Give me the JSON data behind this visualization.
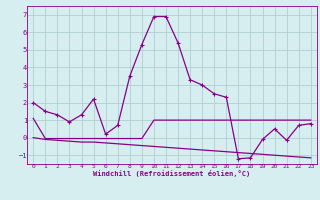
{
  "xlabel": "Windchill (Refroidissement éolien,°C)",
  "background_color": "#d6eef0",
  "grid_color": "#b0d0d4",
  "line_color": "#880088",
  "x_values": [
    0,
    1,
    2,
    3,
    4,
    5,
    6,
    7,
    8,
    9,
    10,
    11,
    12,
    13,
    14,
    15,
    16,
    17,
    18,
    19,
    20,
    21,
    22,
    23
  ],
  "y_main": [
    2.0,
    1.5,
    1.3,
    0.9,
    1.3,
    2.2,
    0.2,
    0.7,
    3.5,
    5.3,
    6.9,
    6.9,
    5.4,
    3.3,
    3.0,
    2.5,
    2.3,
    -1.2,
    -1.15,
    -0.1,
    0.5,
    -0.15,
    0.7,
    0.8
  ],
  "y_line1": [
    1.1,
    -0.05,
    -0.05,
    -0.05,
    -0.05,
    -0.05,
    -0.05,
    -0.05,
    -0.05,
    -0.05,
    1.0,
    1.0,
    1.0,
    1.0,
    1.0,
    1.0,
    1.0,
    1.0,
    1.0,
    1.0,
    1.0,
    1.0,
    1.0,
    1.0
  ],
  "y_line2": [
    0.0,
    -0.1,
    -0.15,
    -0.2,
    -0.25,
    -0.25,
    -0.3,
    -0.35,
    -0.4,
    -0.45,
    -0.5,
    -0.55,
    -0.6,
    -0.65,
    -0.7,
    -0.75,
    -0.8,
    -0.85,
    -0.9,
    -0.95,
    -1.0,
    -1.05,
    -1.1,
    -1.15
  ],
  "ylim": [
    -1.5,
    7.5
  ],
  "xlim": [
    -0.5,
    23.5
  ],
  "yticks": [
    -1,
    0,
    1,
    2,
    3,
    4,
    5,
    6,
    7
  ],
  "xticks": [
    0,
    1,
    2,
    3,
    4,
    5,
    6,
    7,
    8,
    9,
    10,
    11,
    12,
    13,
    14,
    15,
    16,
    17,
    18,
    19,
    20,
    21,
    22,
    23
  ]
}
